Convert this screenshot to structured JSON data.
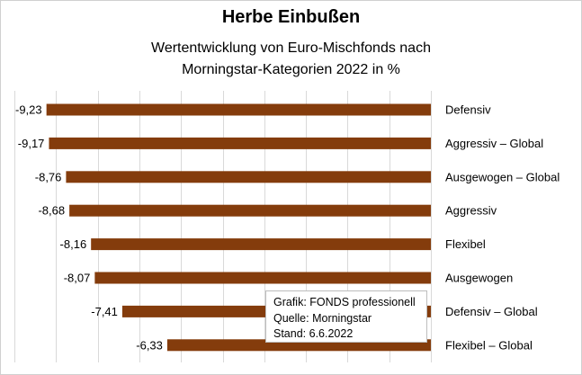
{
  "chart_data": {
    "type": "bar",
    "orientation": "horizontal",
    "title": "Herbe Einbußen",
    "subtitle_lines": [
      "Wertentwicklung von Euro-Mischfonds nach",
      "Morningstar-Kategorien 2022 in %"
    ],
    "categories": [
      "Defensiv",
      "Aggressiv – Global",
      "Ausgewogen  – Global",
      "Aggressiv",
      "Flexibel",
      "Ausgewogen",
      "Defensiv – Global",
      "Flexibel – Global"
    ],
    "values": [
      -9.23,
      -9.17,
      -8.76,
      -8.68,
      -8.16,
      -8.07,
      -7.41,
      -6.33
    ],
    "value_labels": [
      "-9,23",
      "-9,17",
      "-8,76",
      "-8,68",
      "-8,16",
      "-8,07",
      "-7,41",
      "-6,33"
    ],
    "xlim": [
      -10,
      0
    ],
    "grid": true,
    "bar_color": "#843c0c",
    "gridline_color": "#d9d9d9"
  },
  "source_box": {
    "line1": "Grafik: FONDS professionell",
    "line2": "Quelle: Morningstar",
    "line3": "Stand: 6.6.2022"
  }
}
